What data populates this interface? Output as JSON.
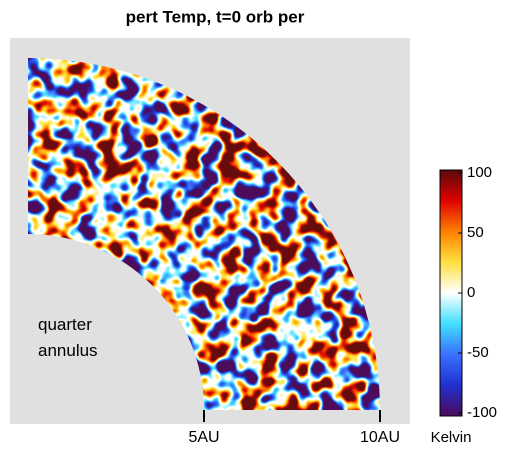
{
  "chart_data": {
    "type": "polar-field",
    "title": "pert Temp, t=0 orb per",
    "annotation": "quarter annulus",
    "xlim": [
      0,
      10
    ],
    "xticks": [
      {
        "value": 5,
        "label": "5AU"
      },
      {
        "value": 10,
        "label": "10AU"
      }
    ],
    "clim": [
      -100,
      100
    ],
    "cticks": [
      100,
      50,
      0,
      -50,
      -100
    ],
    "colorbar_label": "Kelvin"
  }
}
